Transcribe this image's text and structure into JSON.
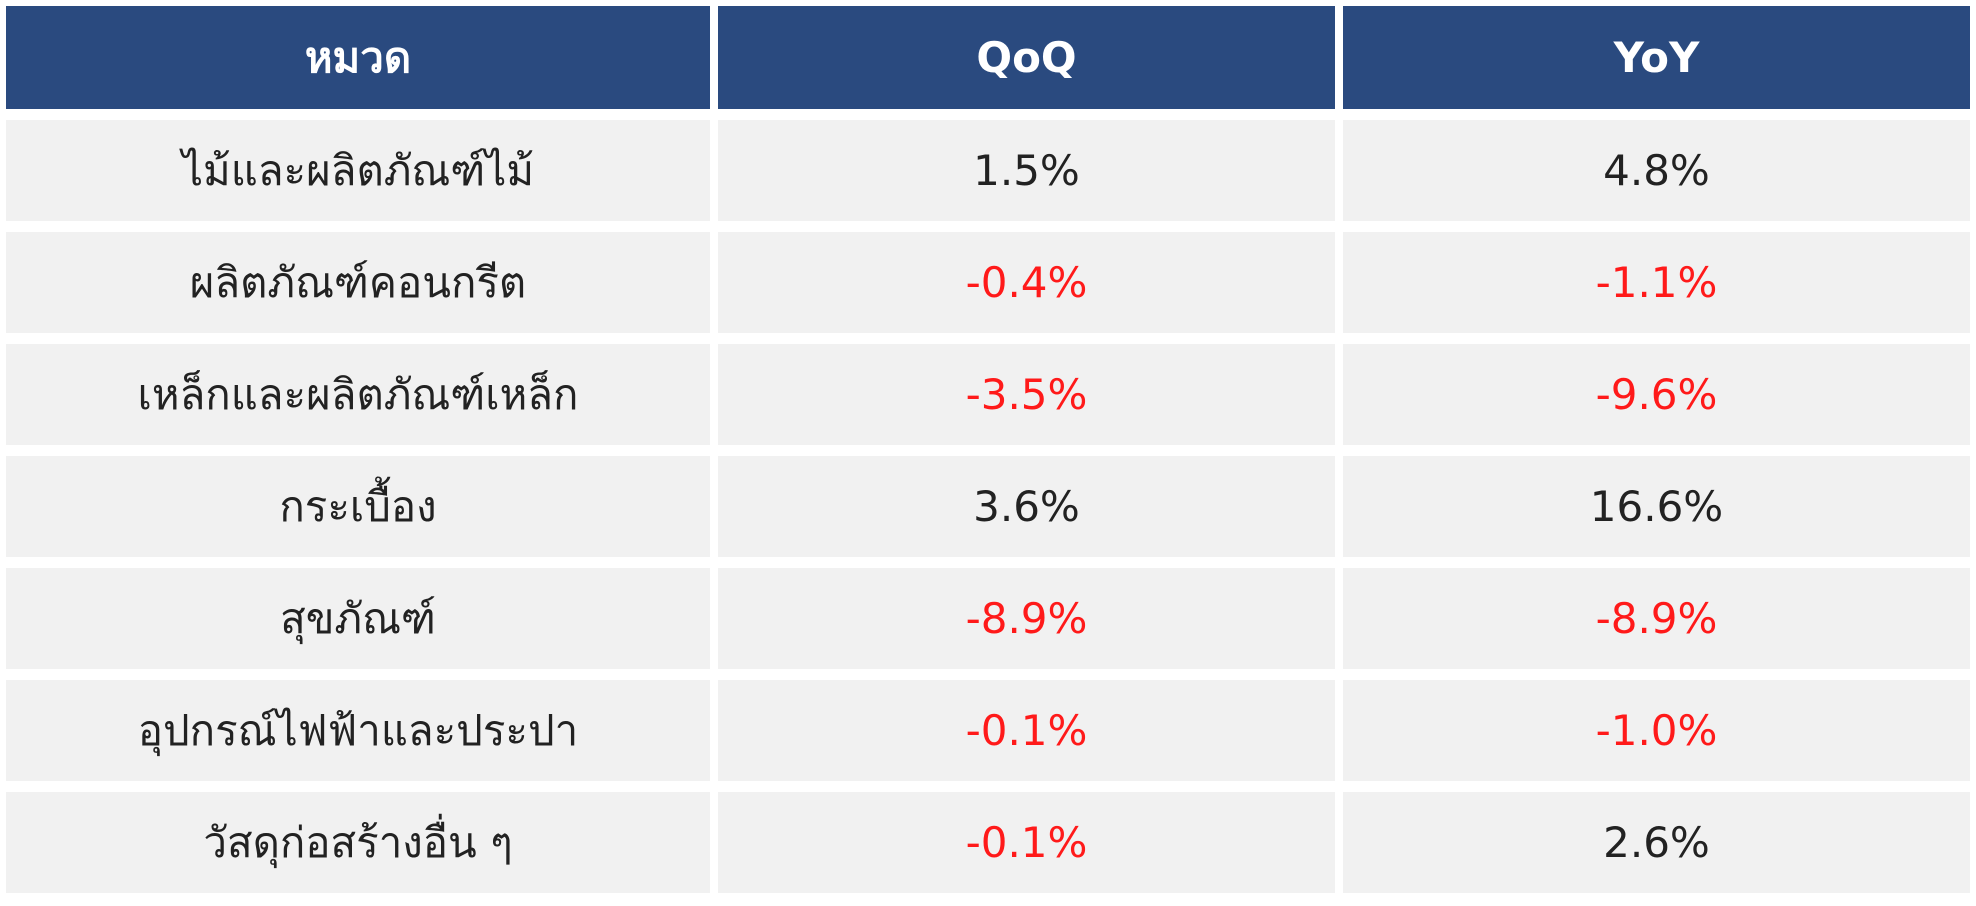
{
  "colors": {
    "header_bg": "#2a4a7f",
    "header_text": "#ffffff",
    "row_bg": "#f1f1f1",
    "positive_text": "#222222",
    "negative_text": "#ff1a1a"
  },
  "chart_data": {
    "type": "table",
    "columns": [
      "หมวด",
      "QoQ",
      "YoY"
    ],
    "rows": [
      {
        "category": "ไม้และผลิตภัณฑ์ไม้",
        "qoq": "1.5%",
        "yoy": "4.8%"
      },
      {
        "category": "ผลิตภัณฑ์คอนกรีต",
        "qoq": "-0.4%",
        "yoy": "-1.1%"
      },
      {
        "category": "เหล็กและผลิตภัณฑ์เหล็ก",
        "qoq": "-3.5%",
        "yoy": "-9.6%"
      },
      {
        "category": "กระเบื้อง",
        "qoq": "3.6%",
        "yoy": "16.6%"
      },
      {
        "category": "สุขภัณฑ์",
        "qoq": "-8.9%",
        "yoy": "-8.9%"
      },
      {
        "category": "อุปกรณ์ไฟฟ้าและประปา",
        "qoq": "-0.1%",
        "yoy": "-1.0%"
      },
      {
        "category": "วัสดุก่อสร้างอื่น ๆ",
        "qoq": "-0.1%",
        "yoy": "2.6%"
      }
    ]
  }
}
